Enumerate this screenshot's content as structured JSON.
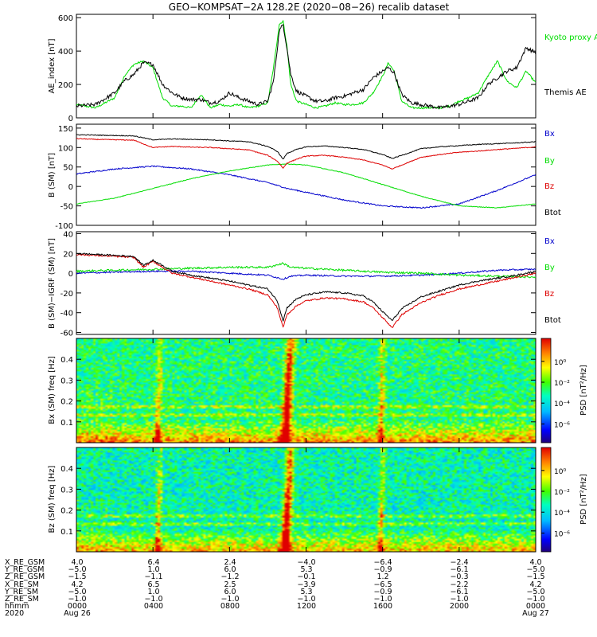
{
  "chart_data": [
    {
      "type": "line",
      "title": "GEO−KOMPSAT−2A 128.2E (2020−08−26) recalib dataset",
      "ylabel": "AE_index [nT]",
      "ylim": [
        0,
        620
      ],
      "yticks": [
        0,
        200,
        400,
        600
      ],
      "xlim": [
        0,
        24
      ],
      "series": [
        {
          "name": "Kyoto proxy AE",
          "color": "#00dd00",
          "x": [
            0,
            1,
            2,
            2.5,
            3,
            3.5,
            4,
            4.5,
            5,
            5.5,
            6,
            6.5,
            7,
            7.5,
            8,
            8.5,
            9,
            9.5,
            10,
            10.3,
            10.6,
            10.8,
            11,
            11.2,
            11.5,
            12,
            12.5,
            13,
            13.5,
            14,
            14.5,
            15,
            15.5,
            16,
            16.3,
            16.6,
            17,
            17.5,
            18,
            18.5,
            19,
            19.5,
            20,
            20.5,
            21,
            21.5,
            22,
            22.5,
            23,
            23.5,
            24
          ],
          "y": [
            80,
            60,
            120,
            250,
            320,
            340,
            300,
            120,
            70,
            70,
            60,
            140,
            60,
            80,
            70,
            80,
            60,
            70,
            90,
            300,
            560,
            580,
            430,
            200,
            100,
            80,
            60,
            70,
            90,
            80,
            80,
            90,
            150,
            250,
            330,
            280,
            100,
            60,
            60,
            60,
            60,
            70,
            100,
            120,
            150,
            250,
            340,
            220,
            180,
            280,
            210
          ]
        },
        {
          "name": "Themis AE",
          "color": "#000000",
          "x": [
            0,
            1,
            2,
            2.5,
            3,
            3.5,
            4,
            4.5,
            5,
            5.5,
            6,
            6.5,
            7,
            7.5,
            8,
            8.5,
            9,
            9.5,
            10,
            10.3,
            10.6,
            10.8,
            11,
            11.2,
            11.5,
            12,
            12.5,
            13,
            13.5,
            14,
            14.5,
            15,
            15.5,
            16,
            16.3,
            16.6,
            17,
            17.5,
            18,
            18.5,
            19,
            19.5,
            20,
            20.5,
            21,
            21.5,
            22,
            22.5,
            23,
            23.5,
            24
          ],
          "y": [
            70,
            80,
            150,
            220,
            260,
            330,
            320,
            200,
            150,
            120,
            110,
            110,
            90,
            100,
            150,
            120,
            100,
            80,
            100,
            220,
            520,
            560,
            420,
            260,
            160,
            130,
            100,
            100,
            120,
            130,
            150,
            170,
            240,
            280,
            300,
            270,
            140,
            90,
            80,
            70,
            60,
            70,
            80,
            100,
            120,
            200,
            240,
            280,
            300,
            420,
            390
          ]
        }
      ],
      "legend": [
        "Kyoto proxy AE",
        "Themis AE"
      ]
    },
    {
      "type": "line",
      "ylabel": "B (SM) [nT]",
      "ylim": [
        -100,
        160
      ],
      "yticks": [
        -100,
        -50,
        0,
        50,
        100,
        150
      ],
      "xlim": [
        0,
        24
      ],
      "series": [
        {
          "name": "Bx",
          "color": "#0000cc",
          "x": [
            0,
            2,
            4,
            6,
            8,
            10,
            11,
            12,
            14,
            16,
            18,
            20,
            22,
            24
          ],
          "y": [
            32,
            45,
            52,
            45,
            30,
            10,
            -5,
            -15,
            -35,
            -50,
            -55,
            -45,
            -10,
            30
          ]
        },
        {
          "name": "By",
          "color": "#00dd00",
          "x": [
            0,
            2,
            4,
            6,
            8,
            10,
            11,
            12,
            14,
            16,
            18,
            20,
            22,
            24
          ],
          "y": [
            -45,
            -30,
            -5,
            20,
            40,
            55,
            58,
            55,
            35,
            5,
            -25,
            -50,
            -55,
            -45
          ]
        },
        {
          "name": "Bz",
          "color": "#dd0000",
          "x": [
            0,
            1,
            2,
            3,
            4,
            5,
            6,
            7,
            8,
            9,
            10,
            10.5,
            10.8,
            11,
            11.5,
            12,
            13,
            14,
            15,
            16,
            16.5,
            17,
            18,
            19,
            20,
            21,
            22,
            23,
            24
          ],
          "y": [
            123,
            121,
            120,
            119,
            100,
            103,
            101,
            100,
            97,
            94,
            80,
            65,
            47,
            60,
            70,
            78,
            80,
            75,
            68,
            55,
            45,
            55,
            75,
            82,
            88,
            91,
            95,
            98,
            102
          ]
        },
        {
          "name": "Btot",
          "color": "#000000",
          "x": [
            0,
            1,
            2,
            3,
            4,
            5,
            6,
            7,
            8,
            9,
            10,
            10.5,
            10.8,
            11,
            11.5,
            12,
            13,
            14,
            15,
            16,
            16.5,
            17,
            18,
            19,
            20,
            21,
            22,
            23,
            24
          ],
          "y": [
            133,
            132,
            131,
            130,
            120,
            122,
            121,
            120,
            117,
            115,
            103,
            90,
            70,
            85,
            95,
            102,
            104,
            100,
            95,
            82,
            72,
            80,
            97,
            102,
            105,
            108,
            110,
            112,
            115
          ]
        }
      ],
      "legend": [
        "Bx",
        "By",
        "Bz",
        "Btot"
      ]
    },
    {
      "type": "line",
      "ylabel": "B (SM)−IGRF (SM) [nT]",
      "ylim": [
        -62,
        42
      ],
      "yticks": [
        -60,
        -40,
        -20,
        0,
        20,
        40
      ],
      "xlim": [
        0,
        24
      ],
      "series": [
        {
          "name": "Bx",
          "color": "#0000cc",
          "x": [
            0,
            2,
            4,
            6,
            8,
            10,
            10.8,
            11.2,
            12,
            14,
            16,
            18,
            20,
            22,
            24
          ],
          "y": [
            0,
            1,
            2,
            2,
            0,
            -2,
            -6,
            -3,
            -2,
            -3,
            -3,
            -2,
            0,
            3,
            4
          ]
        },
        {
          "name": "By",
          "color": "#00dd00",
          "x": [
            0,
            2,
            4,
            6,
            8,
            10,
            10.8,
            11.2,
            12,
            14,
            16,
            18,
            20,
            22,
            24
          ],
          "y": [
            2,
            3,
            4,
            5,
            6,
            6,
            10,
            6,
            5,
            3,
            1,
            0,
            -2,
            -3,
            -4
          ]
        },
        {
          "name": "Bz",
          "color": "#dd0000",
          "x": [
            0,
            1,
            2,
            3,
            3.5,
            4,
            4.5,
            5,
            6,
            7,
            8,
            9,
            10,
            10.5,
            10.8,
            11,
            11.5,
            12,
            13,
            14,
            15,
            15.5,
            16,
            16.5,
            17,
            18,
            19,
            20,
            21,
            22,
            23,
            24
          ],
          "y": [
            19,
            18,
            17,
            16,
            6,
            12,
            6,
            0,
            -4,
            -8,
            -12,
            -16,
            -22,
            -35,
            -55,
            -42,
            -33,
            -28,
            -25,
            -26,
            -29,
            -35,
            -45,
            -55,
            -42,
            -30,
            -22,
            -16,
            -12,
            -8,
            -4,
            0
          ]
        },
        {
          "name": "Btot",
          "color": "#000000",
          "x": [
            0,
            1,
            2,
            3,
            3.5,
            4,
            4.5,
            5,
            6,
            7,
            8,
            9,
            10,
            10.5,
            10.8,
            11,
            11.5,
            12,
            13,
            14,
            15,
            15.5,
            16,
            16.5,
            17,
            18,
            19,
            20,
            21,
            22,
            23,
            24
          ],
          "y": [
            20,
            19,
            18,
            17,
            8,
            13,
            8,
            2,
            -2,
            -5,
            -8,
            -12,
            -16,
            -28,
            -48,
            -35,
            -26,
            -22,
            -19,
            -20,
            -23,
            -29,
            -39,
            -48,
            -36,
            -24,
            -18,
            -12,
            -8,
            -5,
            -2,
            2
          ]
        }
      ],
      "legend": [
        "Bx",
        "By",
        "Bz",
        "Btot"
      ]
    },
    {
      "type": "heatmap",
      "ylabel": "Bx (SM) freq [Hz]",
      "ylim": [
        0,
        0.5
      ],
      "yticks": [
        0.1,
        0.2,
        0.3,
        0.4
      ],
      "xlim": [
        0,
        24
      ],
      "colorbar_label": "PSD [nT²/Hz]",
      "colorbar_ticks": [
        "10⁰",
        "10⁻²",
        "10⁻⁴",
        "10⁻⁶"
      ],
      "features": {
        "hot_columns": [
          10.9,
          4.2,
          15.9
        ],
        "harmonic_lines": [
          0.17,
          0.13
        ]
      }
    },
    {
      "type": "heatmap",
      "ylabel": "Bz (SM) freq [Hz]",
      "ylim": [
        0,
        0.5
      ],
      "yticks": [
        0.1,
        0.2,
        0.3,
        0.4
      ],
      "xlim": [
        0,
        24
      ],
      "colorbar_label": "PSD [nT²/Hz]",
      "colorbar_ticks": [
        "10⁰",
        "10⁻²",
        "10⁻⁴",
        "10⁻⁶"
      ],
      "features": {
        "hot_columns": [
          10.9,
          4.2,
          15.9
        ],
        "harmonic_lines": [
          0.17,
          0.13
        ]
      }
    }
  ],
  "ephemeris": {
    "row_labels": [
      "X_RE_GSM",
      "Y_RE_GSM",
      "Z_RE_GSM",
      "X_RE_SM",
      "Y_RE_SM",
      "Z_RE_SM",
      "hhmm",
      "2020"
    ],
    "columns": [
      [
        "4.0",
        "−5.0",
        "−1.5",
        "4.2",
        "−5.0",
        "−1.0",
        "0000",
        "Aug 26"
      ],
      [
        "6.4",
        "1.0",
        "−1.1",
        "6.5",
        "1.0",
        "−1.0",
        "0400",
        ""
      ],
      [
        "2.4",
        "6.0",
        "−1.2",
        "2.5",
        "6.0",
        "−1.0",
        "0800",
        ""
      ],
      [
        "−4.0",
        "5.3",
        "−0.1",
        "−3.9",
        "5.3",
        "−1.0",
        "1200",
        ""
      ],
      [
        "−6.4",
        "−0.9",
        "1.2",
        "−6.5",
        "−0.9",
        "−1.0",
        "1600",
        ""
      ],
      [
        "−2.4",
        "−6.1",
        "−0.3",
        "−2.2",
        "−6.1",
        "−1.0",
        "2000",
        ""
      ],
      [
        "4.0",
        "−5.0",
        "−1.5",
        "4.2",
        "−5.0",
        "−1.0",
        "0000",
        "Aug 27"
      ]
    ]
  }
}
